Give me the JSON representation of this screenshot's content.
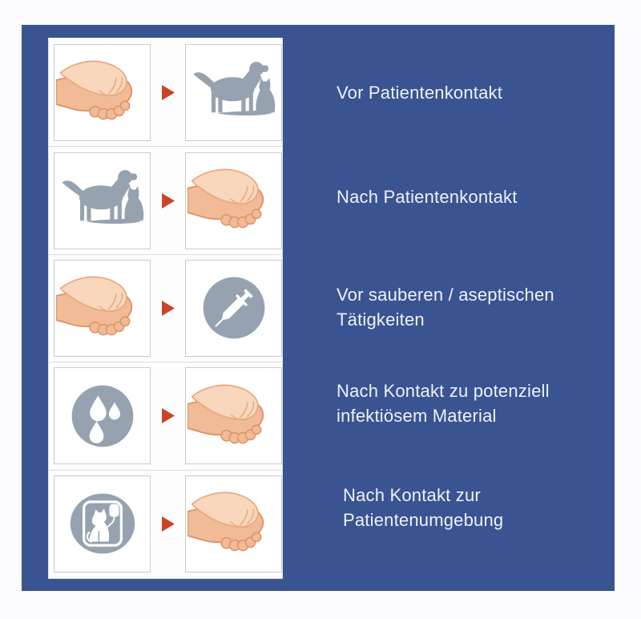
{
  "infographic": {
    "title_present": false,
    "language": "de",
    "topic": "hand-hygiene-moments-veterinary"
  },
  "colors": {
    "page_background": "#fbfbfd",
    "panel_blue": "#3a5391",
    "card_white": "#fdfdfe",
    "box_border": "#c9ccd3",
    "divider": "#d9dbde",
    "icon_gray": "#96a2af",
    "arrow_red": "#cc4326",
    "label_text": "#eef2f8",
    "skin": "#f1bb97",
    "skin_light": "#f8d7bd",
    "skin_outline": "#dd9266"
  },
  "rows": [
    {
      "left_icon": "handwash-icon",
      "right_icon": "dog-cat-icon",
      "label": "Vor Patientenkontakt"
    },
    {
      "left_icon": "dog-cat-icon",
      "right_icon": "handwash-icon",
      "label": "Nach Patientenkontakt"
    },
    {
      "left_icon": "handwash-icon",
      "right_icon": "syringe-circle-icon",
      "label": "Vor sauberen / aseptischen Tätigkeiten"
    },
    {
      "left_icon": "droplets-circle-icon",
      "right_icon": "handwash-icon",
      "label": "Nach Kontakt zu potenziell infektiösem Material"
    },
    {
      "left_icon": "cat-environment-icon",
      "right_icon": "handwash-icon",
      "label": "Nach Kontakt zur Patientenumgebung"
    }
  ]
}
